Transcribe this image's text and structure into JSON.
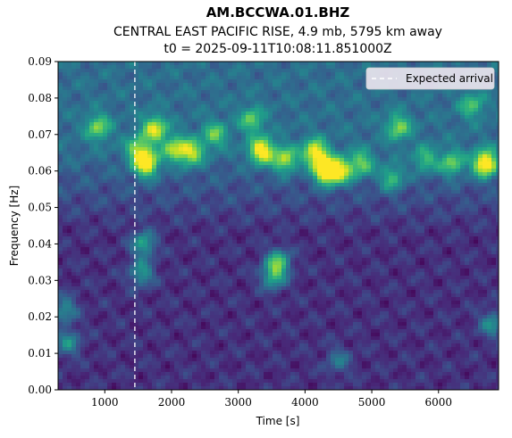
{
  "chart_data": {
    "type": "heatmap",
    "title": "AM.BCCWA.01.BHZ",
    "subtitle_lines": [
      "CENTRAL EAST PACIFIC RISE, 4.9 mb, 5795 km away",
      "t0 = 2025-09-11T10:08:11.851000Z"
    ],
    "xlabel": "Time [s]",
    "ylabel": "Frequency [Hz]",
    "xlim": [
      300,
      6900
    ],
    "ylim": [
      0.0,
      0.09
    ],
    "xticks": [
      1000,
      2000,
      3000,
      4000,
      5000,
      6000
    ],
    "yticks": [
      0.0,
      0.01,
      0.02,
      0.03,
      0.04,
      0.05,
      0.06,
      0.07,
      0.08,
      0.09
    ],
    "ytick_labels": [
      "0.00",
      "0.01",
      "0.02",
      "0.03",
      "0.04",
      "0.05",
      "0.06",
      "0.07",
      "0.08",
      "0.09"
    ],
    "colormap": "viridis",
    "expected_arrival_time": 1450,
    "legend": {
      "entries": [
        "Expected arrival"
      ],
      "placement": "top-right"
    },
    "grid": false,
    "hotspots": [
      {
        "time": 1620,
        "freq": 0.062,
        "intensity": 0.8
      },
      {
        "time": 1500,
        "freq": 0.066,
        "intensity": 0.45
      },
      {
        "time": 1750,
        "freq": 0.0715,
        "intensity": 0.6
      },
      {
        "time": 2050,
        "freq": 0.066,
        "intensity": 0.5
      },
      {
        "time": 2300,
        "freq": 0.065,
        "intensity": 0.55
      },
      {
        "time": 2650,
        "freq": 0.07,
        "intensity": 0.4
      },
      {
        "time": 3350,
        "freq": 0.0655,
        "intensity": 0.75
      },
      {
        "time": 3700,
        "freq": 0.063,
        "intensity": 0.55
      },
      {
        "time": 4150,
        "freq": 0.065,
        "intensity": 0.7
      },
      {
        "time": 4320,
        "freq": 0.06,
        "intensity": 0.95
      },
      {
        "time": 4550,
        "freq": 0.06,
        "intensity": 0.55
      },
      {
        "time": 4850,
        "freq": 0.062,
        "intensity": 0.45
      },
      {
        "time": 5300,
        "freq": 0.058,
        "intensity": 0.4
      },
      {
        "time": 5800,
        "freq": 0.063,
        "intensity": 0.35
      },
      {
        "time": 6200,
        "freq": 0.062,
        "intensity": 0.45
      },
      {
        "time": 6700,
        "freq": 0.062,
        "intensity": 0.85
      },
      {
        "time": 900,
        "freq": 0.072,
        "intensity": 0.45
      },
      {
        "time": 3200,
        "freq": 0.074,
        "intensity": 0.4
      },
      {
        "time": 5400,
        "freq": 0.072,
        "intensity": 0.45
      },
      {
        "time": 6500,
        "freq": 0.078,
        "intensity": 0.35
      },
      {
        "time": 3600,
        "freq": 0.035,
        "intensity": 0.55
      },
      {
        "time": 3520,
        "freq": 0.031,
        "intensity": 0.45
      },
      {
        "time": 1580,
        "freq": 0.04,
        "intensity": 0.45
      },
      {
        "time": 1550,
        "freq": 0.032,
        "intensity": 0.4
      },
      {
        "time": 400,
        "freq": 0.022,
        "intensity": 0.35
      },
      {
        "time": 450,
        "freq": 0.013,
        "intensity": 0.35
      },
      {
        "time": 6800,
        "freq": 0.018,
        "intensity": 0.35
      },
      {
        "time": 4500,
        "freq": 0.008,
        "intensity": 0.25
      }
    ]
  }
}
